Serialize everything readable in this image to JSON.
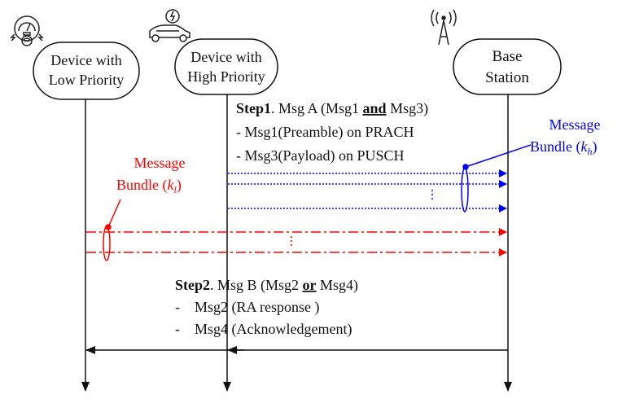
{
  "nodes": {
    "low": {
      "line1": "Device with",
      "line2": "Low Priority",
      "icon": "smart-meter-wifi-icon"
    },
    "high": {
      "line1": "Device with",
      "line2": "High Priority",
      "icon": "electric-car-icon"
    },
    "base": {
      "line1": "Base",
      "line2": "Station",
      "icon": "antenna-tower-icon"
    }
  },
  "step1": {
    "label": "Step1",
    "title_rest": ". Msg A (Msg1 ",
    "and": "and",
    "title_end": " Msg3)",
    "line1": "- Msg1(Preamble) on PRACH",
    "line2": "- Msg3(Payload) on PUSCH"
  },
  "step2": {
    "label": "Step2",
    "title_rest": ". Msg B (Msg2 ",
    "or": "or",
    "title_end": " Msg4)",
    "line1": "-    Msg2 (RA response )",
    "line2": "-    Msg4 (Acknowledgement)"
  },
  "bundle_high": {
    "line1": "Message",
    "line2": "Bundle (",
    "sym": "k",
    "sub": "h",
    "close": ")",
    "color": "#0000ff"
  },
  "bundle_low": {
    "line1": "Message",
    "line2": "Bundle (",
    "sym": "k",
    "sub": "l",
    "close": ")",
    "color": "#ff0000"
  }
}
